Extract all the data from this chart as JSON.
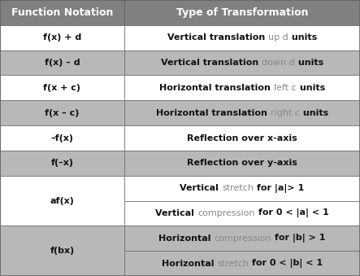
{
  "title_left": "Function Notation",
  "title_right": "Type of Transformation",
  "col_div": 0.345,
  "header_bg": "#808080",
  "header_text_color": "#ffffff",
  "header_fontsize": 9,
  "cell_fontsize": 8,
  "fig_width": 4.43,
  "fig_height": 3.39,
  "dpi": 100,
  "white_bg": "#ffffff",
  "gray_bg": "#b8b8b8",
  "grid_color": "#666666",
  "rows": [
    {
      "left": "f(x) + d",
      "right": [
        {
          "text": "Vertical translation ",
          "bold": true,
          "color": "#111111"
        },
        {
          "text": "up d",
          "bold": false,
          "color": "#888888"
        },
        {
          "text": " units",
          "bold": true,
          "color": "#111111"
        }
      ],
      "bg": "#ffffff",
      "span": 1
    },
    {
      "left": "f(x) – d",
      "right": [
        {
          "text": "Vertical translation ",
          "bold": true,
          "color": "#111111"
        },
        {
          "text": "down d",
          "bold": false,
          "color": "#888888"
        },
        {
          "text": " units",
          "bold": true,
          "color": "#111111"
        }
      ],
      "bg": "#b8b8b8",
      "span": 1
    },
    {
      "left": "f(x + c)",
      "right": [
        {
          "text": "Horizontal translation ",
          "bold": true,
          "color": "#111111"
        },
        {
          "text": "left c",
          "bold": false,
          "color": "#888888"
        },
        {
          "text": " units",
          "bold": true,
          "color": "#111111"
        }
      ],
      "bg": "#ffffff",
      "span": 1
    },
    {
      "left": "f(x – c)",
      "right": [
        {
          "text": "Horizontal translation ",
          "bold": true,
          "color": "#111111"
        },
        {
          "text": "right c",
          "bold": false,
          "color": "#888888"
        },
        {
          "text": " units",
          "bold": true,
          "color": "#111111"
        }
      ],
      "bg": "#b8b8b8",
      "span": 1
    },
    {
      "left": "–f(x)",
      "right": [
        {
          "text": "Reflection over x-axis",
          "bold": true,
          "color": "#111111"
        }
      ],
      "bg": "#ffffff",
      "span": 1
    },
    {
      "left": "f(–x)",
      "right": [
        {
          "text": "Reflection over y-axis",
          "bold": true,
          "color": "#111111"
        }
      ],
      "bg": "#b8b8b8",
      "span": 1
    },
    {
      "left": "af(x)",
      "right_rows": [
        [
          {
            "text": "Vertical ",
            "bold": true,
            "color": "#111111"
          },
          {
            "text": "stretch",
            "bold": false,
            "color": "#888888"
          },
          {
            "text": " for |a|> 1",
            "bold": true,
            "color": "#111111"
          }
        ],
        [
          {
            "text": "Vertical ",
            "bold": true,
            "color": "#111111"
          },
          {
            "text": "compression",
            "bold": false,
            "color": "#888888"
          },
          {
            "text": " for 0 < |a| < 1",
            "bold": true,
            "color": "#111111"
          }
        ]
      ],
      "bg": "#ffffff",
      "span": 2
    },
    {
      "left": "f(bx)",
      "right_rows": [
        [
          {
            "text": "Horizontal ",
            "bold": true,
            "color": "#111111"
          },
          {
            "text": "compression",
            "bold": false,
            "color": "#888888"
          },
          {
            "text": " for |b| > 1",
            "bold": true,
            "color": "#111111"
          }
        ],
        [
          {
            "text": "Horizontal ",
            "bold": true,
            "color": "#111111"
          },
          {
            "text": "stretch",
            "bold": false,
            "color": "#888888"
          },
          {
            "text": " for 0 < |b| < 1",
            "bold": true,
            "color": "#111111"
          }
        ]
      ],
      "bg": "#b8b8b8",
      "span": 2
    }
  ]
}
